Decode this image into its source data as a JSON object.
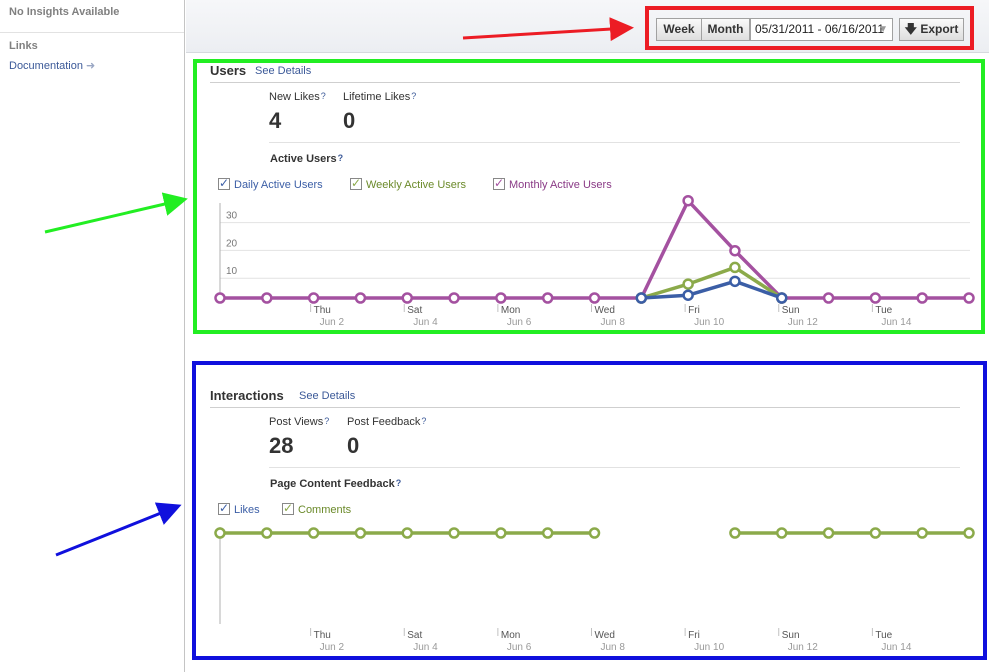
{
  "sidebar": {
    "notice": "No Insights Available",
    "links_heading": "Links",
    "documentation": "Documentation"
  },
  "toolbar": {
    "week": "Week",
    "month": "Month",
    "date_range": "05/31/2011 - 06/16/2011",
    "export": "Export"
  },
  "users": {
    "title": "Users",
    "see_details": "See Details",
    "stats": [
      {
        "label": "New Likes",
        "value": "4"
      },
      {
        "label": "Lifetime Likes",
        "value": "0"
      }
    ],
    "chart_title": "Active Users",
    "legend": [
      {
        "label": "Daily Active Users",
        "color": "#3b5ea6"
      },
      {
        "label": "Weekly Active Users",
        "color": "#8baa4a"
      },
      {
        "label": "Monthly Active Users",
        "color": "#a451a0"
      }
    ]
  },
  "interactions": {
    "title": "Interactions",
    "see_details": "See Details",
    "stats": [
      {
        "label": "Post Views",
        "value": "28"
      },
      {
        "label": "Post Feedback",
        "value": "0"
      }
    ],
    "chart_title": "Page Content Feedback",
    "legend": [
      {
        "label": "Likes",
        "color": "#3b5ea6"
      },
      {
        "label": "Comments",
        "color": "#8baa4a"
      }
    ]
  },
  "chart_data": [
    {
      "type": "line",
      "title": "Active Users",
      "x": [
        "May 31",
        "Jun 1",
        "Jun 2",
        "Jun 3",
        "Jun 4",
        "Jun 5",
        "Jun 6",
        "Jun 7",
        "Jun 8",
        "Jun 9",
        "Jun 10",
        "Jun 11",
        "Jun 12",
        "Jun 13",
        "Jun 14",
        "Jun 15",
        "Jun 16"
      ],
      "tick_labels": [
        {
          "day": "Thu",
          "date": "Jun 2",
          "index": 2
        },
        {
          "day": "Sat",
          "date": "Jun 4",
          "index": 4
        },
        {
          "day": "Mon",
          "date": "Jun 6",
          "index": 6
        },
        {
          "day": "Wed",
          "date": "Jun 8",
          "index": 8
        },
        {
          "day": "Fri",
          "date": "Jun 10",
          "index": 10
        },
        {
          "day": "Sun",
          "date": "Jun 12",
          "index": 12
        },
        {
          "day": "Tue",
          "date": "Jun 14",
          "index": 14
        }
      ],
      "yticks": [
        10,
        20,
        30
      ],
      "ylim": [
        0,
        35
      ],
      "series": [
        {
          "name": "Monthly Active Users",
          "color": "#a451a0",
          "values": [
            0,
            0,
            0,
            0,
            0,
            0,
            0,
            0,
            0,
            0,
            35,
            17,
            0,
            0,
            0,
            0,
            0
          ],
          "markers": true
        },
        {
          "name": "Weekly Active Users",
          "color": "#8baa4a",
          "values": [
            null,
            null,
            null,
            null,
            null,
            null,
            null,
            null,
            null,
            0,
            5,
            11,
            0,
            null,
            null,
            null,
            null
          ],
          "markers": true
        },
        {
          "name": "Daily Active Users",
          "color": "#3b5ea6",
          "values": [
            null,
            null,
            null,
            null,
            null,
            null,
            null,
            null,
            null,
            0,
            1,
            6,
            0,
            null,
            null,
            null,
            null
          ],
          "markers": true
        }
      ]
    },
    {
      "type": "scatter",
      "title": "Page Content Feedback",
      "x": [
        "May 31",
        "Jun 1",
        "Jun 2",
        "Jun 3",
        "Jun 4",
        "Jun 5",
        "Jun 6",
        "Jun 7",
        "Jun 8",
        "Jun 9",
        "Jun 10",
        "Jun 11",
        "Jun 12",
        "Jun 13",
        "Jun 14",
        "Jun 15",
        "Jun 16"
      ],
      "tick_labels": [
        {
          "day": "Thu",
          "date": "Jun 2",
          "index": 2
        },
        {
          "day": "Sat",
          "date": "Jun 4",
          "index": 4
        },
        {
          "day": "Mon",
          "date": "Jun 6",
          "index": 6
        },
        {
          "day": "Wed",
          "date": "Jun 8",
          "index": 8
        },
        {
          "day": "Fri",
          "date": "Jun 10",
          "index": 10
        },
        {
          "day": "Sun",
          "date": "Jun 12",
          "index": 12
        },
        {
          "day": "Tue",
          "date": "Jun 14",
          "index": 14
        }
      ],
      "series": [
        {
          "name": "Comments",
          "color": "#8baa4a",
          "values": [
            0,
            0,
            0,
            0,
            0,
            0,
            0,
            0,
            0,
            null,
            null,
            0,
            0,
            0,
            0,
            0,
            0
          ],
          "markers": true
        }
      ]
    }
  ]
}
